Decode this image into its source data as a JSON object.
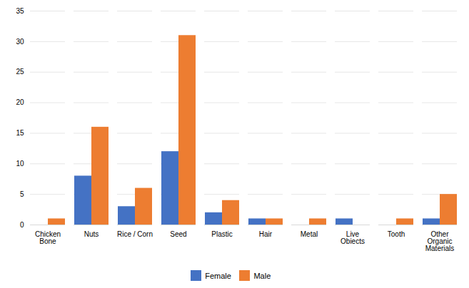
{
  "chart_data": {
    "type": "bar",
    "categories": [
      "Chicken\nBone",
      "Nuts",
      "Rice / Corn",
      "Seed",
      "Plastic",
      "Hair",
      "Metal",
      "Live\nObiects",
      "Tooth",
      "Other\nOrganic\nMaterials"
    ],
    "series": [
      {
        "name": "Female",
        "color": "#4472c4",
        "values": [
          0,
          8,
          3,
          12,
          2,
          1,
          0,
          1,
          0,
          1
        ]
      },
      {
        "name": "Male",
        "color": "#ed7d31",
        "values": [
          1,
          16,
          6,
          31,
          4,
          1,
          1,
          0,
          1,
          5
        ]
      }
    ],
    "ylim": [
      0,
      35
    ],
    "yticks": [
      0,
      5,
      10,
      15,
      20,
      25,
      30,
      35
    ],
    "grid": true,
    "legend": "bottom"
  }
}
